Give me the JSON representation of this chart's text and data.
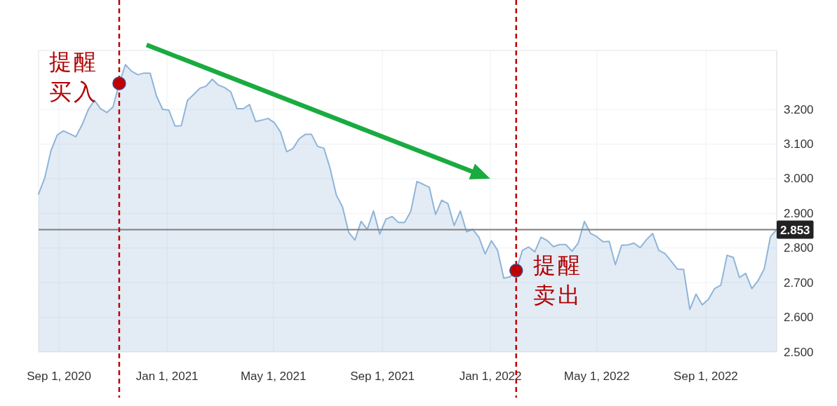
{
  "chart_data": {
    "type": "area",
    "x": [
      "2020-08-09",
      "2020-08-16",
      "2020-08-23",
      "2020-08-30",
      "2020-09-06",
      "2020-09-13",
      "2020-09-20",
      "2020-09-27",
      "2020-10-04",
      "2020-10-11",
      "2020-10-18",
      "2020-10-25",
      "2020-11-01",
      "2020-11-08",
      "2020-11-15",
      "2020-11-22",
      "2020-11-29",
      "2020-12-06",
      "2020-12-13",
      "2020-12-20",
      "2020-12-27",
      "2021-01-03",
      "2021-01-10",
      "2021-01-17",
      "2021-01-24",
      "2021-01-31",
      "2021-02-07",
      "2021-02-14",
      "2021-02-21",
      "2021-02-28",
      "2021-03-07",
      "2021-03-14",
      "2021-03-21",
      "2021-03-28",
      "2021-04-04",
      "2021-04-11",
      "2021-04-18",
      "2021-04-25",
      "2021-05-02",
      "2021-05-09",
      "2021-05-16",
      "2021-05-23",
      "2021-05-30",
      "2021-06-06",
      "2021-06-13",
      "2021-06-20",
      "2021-06-27",
      "2021-07-04",
      "2021-07-11",
      "2021-07-18",
      "2021-07-25",
      "2021-08-01",
      "2021-08-08",
      "2021-08-15",
      "2021-08-22",
      "2021-08-29",
      "2021-09-05",
      "2021-09-12",
      "2021-09-19",
      "2021-09-26",
      "2021-10-03",
      "2021-10-10",
      "2021-10-17",
      "2021-10-24",
      "2021-10-31",
      "2021-11-07",
      "2021-11-14",
      "2021-11-21",
      "2021-11-28",
      "2021-12-05",
      "2021-12-12",
      "2021-12-19",
      "2021-12-26",
      "2022-01-02",
      "2022-01-09",
      "2022-01-16",
      "2022-01-23",
      "2022-01-30",
      "2022-02-06",
      "2022-02-13",
      "2022-02-20",
      "2022-02-27",
      "2022-03-06",
      "2022-03-13",
      "2022-03-20",
      "2022-03-27",
      "2022-04-03",
      "2022-04-10",
      "2022-04-17",
      "2022-04-24",
      "2022-05-01",
      "2022-05-08",
      "2022-05-15",
      "2022-05-22",
      "2022-05-29",
      "2022-06-05",
      "2022-06-12",
      "2022-06-19",
      "2022-06-26",
      "2022-07-03",
      "2022-07-10",
      "2022-07-17",
      "2022-07-24",
      "2022-07-31",
      "2022-08-07",
      "2022-08-14",
      "2022-08-21",
      "2022-08-28",
      "2022-09-04",
      "2022-09-11",
      "2022-09-18",
      "2022-09-25",
      "2022-10-02",
      "2022-10-09",
      "2022-10-16",
      "2022-10-23",
      "2022-10-30",
      "2022-11-06",
      "2022-11-13",
      "2022-11-20"
    ],
    "series": [
      {
        "color": "#8fb4d9",
        "values": [
          2.956,
          3.003,
          3.081,
          3.126,
          3.138,
          3.13,
          3.121,
          3.155,
          3.199,
          3.226,
          3.202,
          3.191,
          3.207,
          3.275,
          3.329,
          3.31,
          3.3,
          3.305,
          3.304,
          3.239,
          3.2,
          3.198,
          3.152,
          3.153,
          3.226,
          3.243,
          3.261,
          3.267,
          3.287,
          3.27,
          3.263,
          3.25,
          3.202,
          3.202,
          3.214,
          3.165,
          3.169,
          3.174,
          3.162,
          3.135,
          3.078,
          3.087,
          3.115,
          3.128,
          3.128,
          3.093,
          3.088,
          3.03,
          2.953,
          2.919,
          2.845,
          2.823,
          2.877,
          2.854,
          2.907,
          2.84,
          2.883,
          2.891,
          2.874,
          2.874,
          2.905,
          2.992,
          2.984,
          2.975,
          2.897,
          2.938,
          2.928,
          2.865,
          2.907,
          2.847,
          2.854,
          2.831,
          2.783,
          2.821,
          2.794,
          2.713,
          2.717,
          2.735,
          2.793,
          2.803,
          2.789,
          2.831,
          2.822,
          2.804,
          2.81,
          2.81,
          2.791,
          2.814,
          2.877,
          2.842,
          2.833,
          2.818,
          2.819,
          2.752,
          2.808,
          2.809,
          2.814,
          2.801,
          2.824,
          2.842,
          2.793,
          2.784,
          2.762,
          2.739,
          2.738,
          2.623,
          2.667,
          2.636,
          2.652,
          2.683,
          2.693,
          2.779,
          2.773,
          2.715,
          2.727,
          2.683,
          2.706,
          2.74,
          2.833,
          2.853
        ]
      }
    ],
    "xlim": [
      "2020-08-09",
      "2022-11-20"
    ],
    "xticks": [
      {
        "value": "2020-09-01",
        "label": "Sep 1, 2020"
      },
      {
        "value": "2021-01-01",
        "label": "Jan 1, 2021"
      },
      {
        "value": "2021-05-01",
        "label": "May 1, 2021"
      },
      {
        "value": "2021-09-01",
        "label": "Sep 1, 2021"
      },
      {
        "value": "2022-01-01",
        "label": "Jan 1, 2022"
      },
      {
        "value": "2022-05-01",
        "label": "May 1, 2022"
      },
      {
        "value": "2022-09-01",
        "label": "Sep 1, 2022"
      }
    ],
    "ylim": [
      2.5,
      3.37
    ],
    "yticks": [
      {
        "value": 2.5,
        "label": "2.500"
      },
      {
        "value": 2.6,
        "label": "2.600"
      },
      {
        "value": 2.7,
        "label": "2.700"
      },
      {
        "value": 2.8,
        "label": "2.800"
      },
      {
        "value": 2.9,
        "label": "2.900"
      },
      {
        "value": 3.0,
        "label": "3.000"
      },
      {
        "value": 3.1,
        "label": "3.100"
      },
      {
        "value": 3.2,
        "label": "3.200"
      }
    ],
    "grid": true,
    "ref_lines": [
      {
        "axis": "y",
        "value": 2.853,
        "label": "2.853",
        "color": "#7f7f7f"
      },
      {
        "axis": "x",
        "value": "2020-11-08",
        "color": "#c00000",
        "line_style": "dashed"
      },
      {
        "axis": "x",
        "value": "2022-01-30",
        "color": "#c00000",
        "line_style": "dashed"
      }
    ],
    "annotations": [
      {
        "text": "提醒买入",
        "x": "2020-11-08",
        "y": 3.275
      },
      {
        "text": "提醒卖出",
        "x": "2022-01-30",
        "y": 2.735
      }
    ]
  }
}
